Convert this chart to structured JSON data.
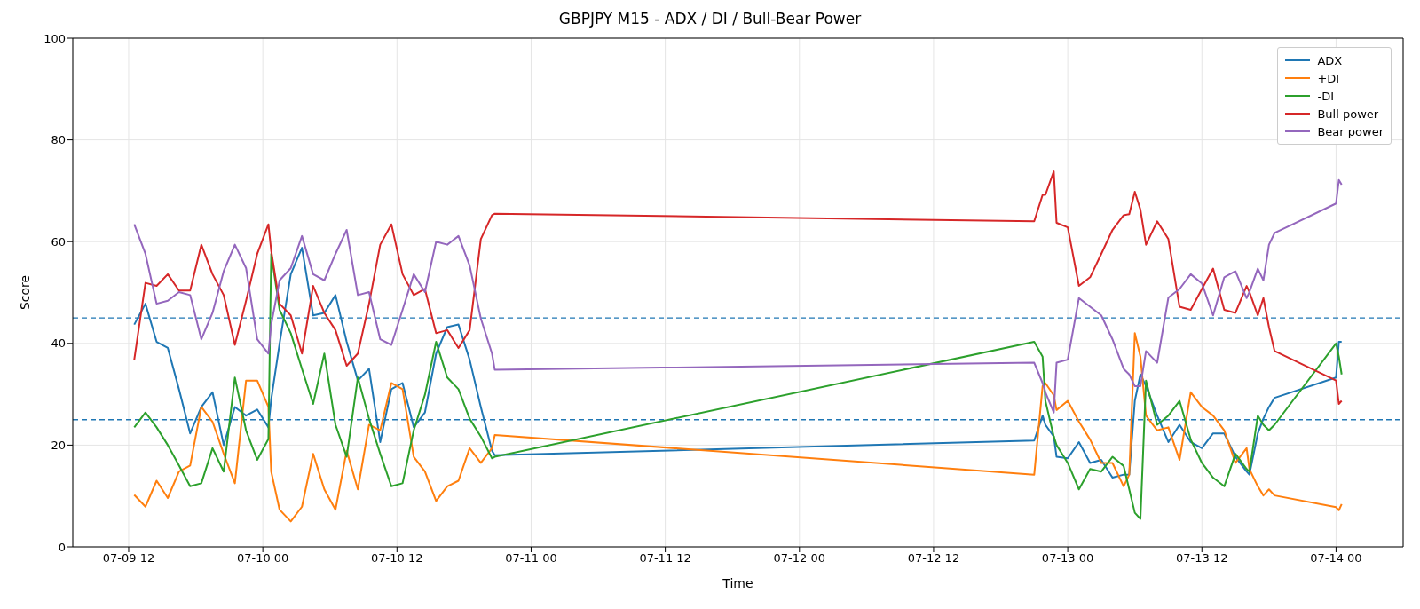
{
  "chart_data": {
    "type": "line",
    "title": "GBPJPY M15 - ADX / DI / Bull-Bear Power",
    "xlabel": "Time",
    "ylabel": "Score",
    "x": [
      "--07-09T12:30",
      "--07-09T13:30",
      "--07-09T14:30",
      "--07-09T15:30",
      "--07-09T16:30",
      "--07-09T17:30",
      "--07-09T18:30",
      "--07-09T19:30",
      "--07-09T20:30",
      "--07-09T21:30",
      "--07-09T22:30",
      "--07-09T23:30",
      "--07-10T00:30",
      "--07-10T00:45",
      "--07-10T01:30",
      "--07-10T02:30",
      "--07-10T03:30",
      "--07-10T04:30",
      "--07-10T05:30",
      "--07-10T06:30",
      "--07-10T07:30",
      "--07-10T08:30",
      "--07-10T09:30",
      "--07-10T10:30",
      "--07-10T11:30",
      "--07-10T12:30",
      "--07-10T13:30",
      "--07-10T14:30",
      "--07-10T15:30",
      "--07-10T16:30",
      "--07-10T17:30",
      "--07-10T18:30",
      "--07-10T19:30",
      "--07-10T20:30",
      "--07-10T20:45",
      "--07-12T21:00",
      "--07-12T21:45",
      "--07-12T22:00",
      "--07-12T22:45",
      "--07-12T23:00",
      "--07-13T00:00",
      "--07-13T01:00",
      "--07-13T02:00",
      "--07-13T03:00",
      "--07-13T04:00",
      "--07-13T05:00",
      "--07-13T05:30",
      "--07-13T06:00",
      "--07-13T06:30",
      "--07-13T07:00",
      "--07-13T08:00",
      "--07-13T09:00",
      "--07-13T10:00",
      "--07-13T11:00",
      "--07-13T12:00",
      "--07-13T13:00",
      "--07-13T14:00",
      "--07-13T15:00",
      "--07-13T16:00",
      "--07-13T16:15",
      "--07-13T17:00",
      "--07-13T17:30",
      "--07-13T18:00",
      "--07-13T18:30",
      "--07-14T00:00",
      "--07-14T00:15",
      "--07-14T00:30"
    ],
    "series": [
      {
        "name": "ADX",
        "color": "#1f77b4",
        "values": [
          43.7,
          47.8,
          40.3,
          39.1,
          31,
          22.3,
          27.5,
          30.4,
          20,
          27.5,
          25.8,
          27,
          23.5,
          29,
          40,
          53.6,
          58.8,
          45.5,
          46,
          49.5,
          40.3,
          32.7,
          35,
          20.6,
          31,
          32.2,
          23.5,
          26.4,
          38,
          43.2,
          43.7,
          36.8,
          27.5,
          18.9,
          18,
          20.9,
          25.8,
          24,
          21.7,
          17.7,
          17.4,
          20.6,
          16.5,
          17.1,
          13.6,
          14.2,
          14.2,
          28.7,
          33.9,
          31.6,
          25.8,
          20.6,
          24,
          20.6,
          19.4,
          22.3,
          22.3,
          17.7,
          14.8,
          14.2,
          22.3,
          25.2,
          27.5,
          29.3,
          33.3,
          40.3,
          40.3
        ]
      },
      {
        "name": "+DI",
        "color": "#ff7f0e",
        "values": [
          10.2,
          7.9,
          13,
          9.6,
          14.8,
          16,
          27.5,
          24.6,
          18.3,
          12.5,
          32.7,
          32.7,
          27.5,
          14.8,
          7.3,
          5,
          7.9,
          18.3,
          11.3,
          7.3,
          18.9,
          11.3,
          24,
          22.9,
          32.2,
          31,
          17.7,
          14.8,
          9,
          11.9,
          13,
          19.4,
          16.5,
          19.4,
          22,
          14.2,
          31.6,
          32.2,
          29.8,
          26.9,
          28.7,
          24.6,
          21.1,
          16.5,
          16.5,
          11.9,
          14.2,
          42,
          37.4,
          25.8,
          22.9,
          23.5,
          17.1,
          30.4,
          27.5,
          25.8,
          22.9,
          16.5,
          19.4,
          15.3,
          11.9,
          10.1,
          11.3,
          10.1,
          7.8,
          7.2,
          8.4
        ]
      },
      {
        "name": "-DI",
        "color": "#2ca02c",
        "values": [
          23.5,
          26.4,
          23.5,
          20,
          16,
          11.9,
          12.5,
          19.4,
          14.8,
          33.3,
          22.9,
          17.1,
          21.2,
          57.6,
          46.6,
          42,
          35,
          28.1,
          38,
          24,
          17.7,
          33.3,
          25.2,
          18.3,
          11.9,
          12.5,
          22.9,
          29.9,
          40.3,
          33.3,
          31,
          25.2,
          21.7,
          17.4,
          17.7,
          40.3,
          37.4,
          28.7,
          21.7,
          20,
          16.5,
          11.3,
          15.3,
          14.8,
          17.7,
          15.9,
          11.3,
          6.7,
          5.5,
          32.7,
          24,
          25.8,
          28.7,
          21.1,
          16.5,
          13.6,
          11.9,
          18.3,
          15.3,
          14.8,
          25.8,
          24,
          22.9,
          24,
          40,
          37.4,
          33.9
        ]
      },
      {
        "name": "Bull power",
        "color": "#d62728",
        "values": [
          36.8,
          51.9,
          51.3,
          53.6,
          50.4,
          50.4,
          59.4,
          53.6,
          49.5,
          39.7,
          48.4,
          57.6,
          63.4,
          58.2,
          47.8,
          45.5,
          38,
          51.3,
          46,
          42.6,
          35.6,
          38,
          47.8,
          59.4,
          63.4,
          53.6,
          49.5,
          50.7,
          42,
          42.6,
          39.1,
          42.6,
          60.5,
          65.2,
          65.5,
          64,
          69.2,
          69.2,
          73.8,
          63.7,
          62.8,
          51.3,
          53,
          57.6,
          62.3,
          65.2,
          65.4,
          69.8,
          66.3,
          59.4,
          64,
          60.5,
          47.2,
          46.6,
          50.7,
          54.7,
          46.6,
          46,
          51.3,
          50.1,
          45.5,
          48.9,
          43.2,
          38.5,
          32.7,
          28.1,
          28.7
        ]
      },
      {
        "name": "Bear power",
        "color": "#9467bd",
        "values": [
          63.4,
          57.6,
          47.8,
          48.4,
          50.1,
          49.5,
          40.8,
          46,
          54.2,
          59.4,
          54.8,
          40.8,
          38,
          43.7,
          52.4,
          54.8,
          61.1,
          53.6,
          52.4,
          57.6,
          62.3,
          49.5,
          50.1,
          40.8,
          39.7,
          46.6,
          53.6,
          50.1,
          60,
          59.4,
          61.1,
          55.3,
          44.9,
          38,
          34.8,
          36.2,
          32.2,
          30.4,
          26.4,
          36.2,
          36.8,
          48.9,
          47.2,
          45.5,
          40.8,
          35,
          33.9,
          31.6,
          31.6,
          38.5,
          36.2,
          49,
          50.7,
          53.6,
          51.8,
          45.5,
          53,
          54.2,
          48.9,
          50.1,
          54.7,
          52.4,
          59.4,
          61.7,
          67.5,
          72.1,
          71.2
        ]
      }
    ],
    "xlim": [
      "--07-09T07:00",
      "--07-14T06:00"
    ],
    "xticks": [
      {
        "value": "--07-09T12:00",
        "label": "07-09 12"
      },
      {
        "value": "--07-10T00:00",
        "label": "07-10 00"
      },
      {
        "value": "--07-10T12:00",
        "label": "07-10 12"
      },
      {
        "value": "--07-11T00:00",
        "label": "07-11 00"
      },
      {
        "value": "--07-11T12:00",
        "label": "07-11 12"
      },
      {
        "value": "--07-12T00:00",
        "label": "07-12 00"
      },
      {
        "value": "--07-12T12:00",
        "label": "07-12 12"
      },
      {
        "value": "--07-13T00:00",
        "label": "07-13 00"
      },
      {
        "value": "--07-13T12:00",
        "label": "07-13 12"
      },
      {
        "value": "--07-14T00:00",
        "label": "07-14 00"
      }
    ],
    "ylim": [
      0,
      100
    ],
    "yticks": [
      0,
      20,
      40,
      60,
      80,
      100
    ],
    "ref_lines": [
      {
        "axis": "y",
        "value": 45,
        "color": "#1f77b4",
        "line_style": "dashed"
      },
      {
        "axis": "y",
        "value": 25,
        "color": "#1f77b4",
        "line_style": "dashed"
      }
    ],
    "grid": true,
    "legend": "top right"
  }
}
